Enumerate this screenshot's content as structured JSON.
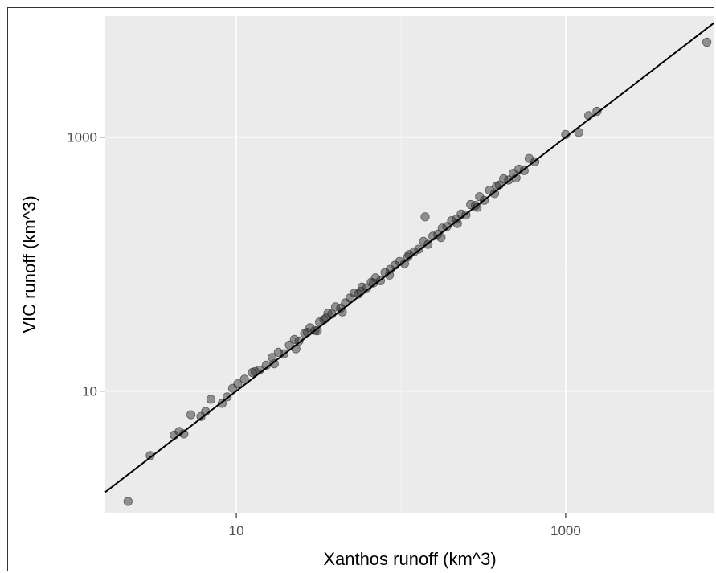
{
  "chart_data": {
    "type": "scatter",
    "title": "",
    "xlabel": "Xanthos runoff (km^3)",
    "ylabel": "VIC runoff (km^3)",
    "x_scale": "log10",
    "y_scale": "log10",
    "xlim": [
      1.6,
      8000
    ],
    "ylim": [
      1.1,
      9000
    ],
    "x_ticks": [
      {
        "value": 10,
        "label": "10"
      },
      {
        "value": 1000,
        "label": "1000"
      }
    ],
    "y_ticks": [
      {
        "value": 10,
        "label": "10"
      },
      {
        "value": 1000,
        "label": "1000"
      }
    ],
    "grid": true,
    "reference_line": {
      "type": "identity",
      "label": ""
    },
    "colors": {
      "panel_background": "#ebebeb",
      "grid_major": "#ffffff",
      "grid_minor": "#f5f5f5",
      "points": "#333333",
      "line": "#000000"
    },
    "series": [
      {
        "x": [
          2.2,
          3.0,
          4.2,
          4.5,
          4.8,
          5.3,
          6.1,
          6.5,
          7.0,
          8.2,
          8.8,
          9.5,
          10.2,
          11.2,
          12.5,
          13.8,
          15.2,
          16.5,
          18.0,
          19.5,
          21.0,
          22.5,
          24.0,
          26.0,
          28.0,
          30.0,
          32.0,
          34.0,
          36.0,
          38.0,
          40.0,
          43.0,
          46.0,
          49.0,
          52.0,
          55.0,
          58.0,
          62.0,
          66.0,
          70.0,
          75.0,
          80.0,
          86.0,
          92.0,
          98.0,
          105.0,
          112.0,
          120.0,
          128.0,
          137.0,
          146.0,
          156.0,
          167.0,
          178.0,
          190.0,
          203.0,
          217.0,
          232.0,
          248.0,
          265.0,
          283.0,
          300.0,
          320.0,
          345.0,
          370.0,
          395.0,
          420.0,
          450.0,
          480.0,
          520.0,
          560.0,
          600.0,
          650.0,
          1000.0,
          1200.0,
          1380.0,
          1550.0,
          7200.0,
          13.0,
          17.0,
          23.0,
          27.0,
          31.0,
          35.0,
          44.0,
          57.0,
          68.0,
          85.0,
          110.0,
          140.0,
          175.0,
          220.0,
          290.0,
          380.0,
          500.0
        ],
        "y": [
          1.35,
          3.1,
          4.5,
          4.8,
          4.6,
          6.5,
          6.3,
          6.9,
          8.6,
          8.0,
          9.0,
          10.5,
          11.4,
          12.4,
          14.0,
          14.6,
          16.0,
          18.4,
          20.2,
          19.7,
          23.0,
          25.5,
          24.8,
          28.5,
          31.5,
          30.0,
          35.0,
          36.5,
          41.0,
          40.5,
          46.0,
          45.0,
          49.5,
          54.0,
          59.0,
          58.0,
          66.0,
          65.0,
          72.0,
          78.0,
          74.0,
          86.0,
          91.0,
          98.0,
          105.0,
          101.0,
          119.0,
          125.0,
          131.0,
          151.0,
          143.0,
          166.0,
          172.0,
          192.0,
          198.0,
          220.0,
          226.0,
          248.0,
          244.0,
          295.0,
          290.0,
          340.0,
          318.0,
          382.0,
          360.0,
          420.0,
          470.0,
          460.0,
          520.0,
          560.0,
          545.0,
          680.0,
          640.0,
          1050.0,
          1090.0,
          1480.0,
          1600.0,
          5600.0,
          14.2,
          16.4,
          21.5,
          29.0,
          29.8,
          37.5,
          42.0,
          61.0,
          71.0,
          82.0,
          114.0,
          236.0,
          162.0,
          209.0,
          280.0,
          410.0,
          478.0
        ]
      }
    ]
  }
}
